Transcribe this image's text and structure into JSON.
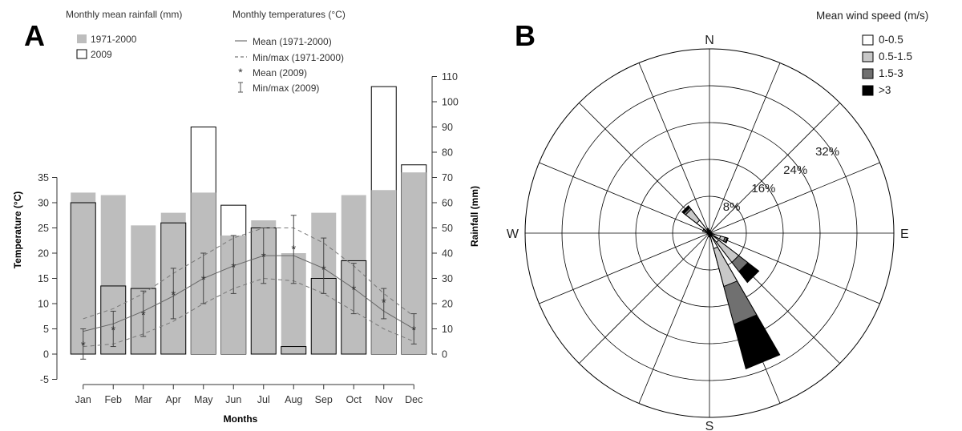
{
  "figure": {
    "panel_a_label": "A",
    "panel_b_label": "B"
  },
  "chart_data": [
    {
      "type": "bar",
      "panel": "A",
      "categories": [
        "Jan",
        "Feb",
        "Mar",
        "Apr",
        "May",
        "Jun",
        "Jul",
        "Aug",
        "Sep",
        "Oct",
        "Nov",
        "Dec"
      ],
      "xlabel": "Months",
      "ylabel_left": "Temperature (°C)",
      "ylabel_right": "Rainfall (mm)",
      "ylim_left": [
        -5,
        35
      ],
      "yticks_left": [
        -5,
        0,
        5,
        10,
        15,
        20,
        25,
        30,
        35
      ],
      "ylim_right": [
        0,
        110
      ],
      "yticks_right": [
        0,
        10,
        20,
        30,
        40,
        50,
        60,
        70,
        80,
        90,
        100,
        110
      ],
      "legend_rain_title": "Monthly mean rainfall (mm)",
      "legend_temp_title": "Monthly temperatures (°C)",
      "legend_rain": [
        {
          "label": "1971-2000",
          "color": "#bdbdbd"
        },
        {
          "label": "2009",
          "color": "#ffffff"
        }
      ],
      "legend_temp": [
        {
          "label": "Mean (1971-2000)",
          "style": "solid"
        },
        {
          "label": "Min/max (1971-2000)",
          "style": "dashed"
        },
        {
          "label": "Mean (2009)",
          "style": "asterisk"
        },
        {
          "label": "Min/max (2009)",
          "style": "errorbar"
        }
      ],
      "rainfall_1971_2000": [
        64,
        63,
        51,
        56,
        64,
        47,
        53,
        40,
        56,
        63,
        65,
        72
      ],
      "rainfall_2009": [
        60,
        27,
        26,
        52,
        90,
        59,
        50,
        3,
        30,
        37,
        106,
        75
      ],
      "temp_mean_1971_2000": [
        4.5,
        6,
        8.5,
        11.5,
        15,
        17.5,
        19.5,
        19.5,
        17,
        13,
        8.5,
        5
      ],
      "temp_min_1971_2000": [
        1.5,
        2,
        4,
        6.5,
        10,
        13,
        15,
        14.5,
        12,
        8.5,
        5,
        2.5
      ],
      "temp_max_1971_2000": [
        7,
        9,
        12,
        16,
        19.5,
        23,
        25,
        25,
        22,
        17.5,
        12,
        7.5
      ],
      "temp_mean_2009": [
        2,
        5,
        8,
        12,
        15,
        17.5,
        19.5,
        21,
        17,
        13,
        10.5,
        5
      ],
      "temp_min_2009": [
        -1,
        1.5,
        3.5,
        7,
        10,
        12,
        14,
        14,
        12,
        8,
        7,
        2
      ],
      "temp_max_2009": [
        5,
        8.5,
        12.5,
        17,
        20,
        23.5,
        25,
        27.5,
        23,
        18,
        13,
        8
      ]
    },
    {
      "type": "wind-rose",
      "panel": "B",
      "directions": [
        "N",
        "NNE",
        "NE",
        "ENE",
        "E",
        "ESE",
        "SE",
        "SSE",
        "S",
        "SSW",
        "SW",
        "WSW",
        "W",
        "WNW",
        "NW",
        "NNW"
      ],
      "compass_labels": [
        "N",
        "E",
        "S",
        "W"
      ],
      "ring_labels": [
        "8%",
        "16%",
        "24%",
        "32%"
      ],
      "ring_values": [
        8,
        16,
        24,
        32
      ],
      "rmax": 40,
      "legend_title": "Mean wind speed (m/s)",
      "legend_placement": "top-right",
      "speed_classes": [
        {
          "label": "0-0.5",
          "color": "#ffffff"
        },
        {
          "label": "0.5-1.5",
          "color": "#c8c8c8"
        },
        {
          "label": "1.5-3",
          "color": "#707070"
        },
        {
          "label": ">3",
          "color": "#000000"
        }
      ],
      "cumulative_frequency_percent": {
        "N": [
          0.6,
          0.6,
          0.6,
          0.6
        ],
        "NNE": [
          0.4,
          0.4,
          0.4,
          0.4
        ],
        "NE": [
          0.3,
          0.3,
          0.3,
          0.3
        ],
        "ENE": [
          0.3,
          0.3,
          0.3,
          0.3
        ],
        "E": [
          0.5,
          0.5,
          0.5,
          0.5
        ],
        "ESE": [
          2.5,
          3.5,
          4.0,
          4.2
        ],
        "SE": [
          2.5,
          8.0,
          10.5,
          13.5
        ],
        "SSE": [
          3.5,
          12.0,
          20.5,
          30.5
        ],
        "S": [
          0.8,
          0.8,
          0.8,
          0.8
        ],
        "SSW": [
          0.3,
          0.3,
          0.3,
          0.3
        ],
        "SW": [
          0.3,
          0.3,
          0.3,
          0.3
        ],
        "WSW": [
          0.3,
          0.3,
          0.3,
          0.3
        ],
        "W": [
          0.5,
          0.5,
          0.5,
          0.5
        ],
        "WNW": [
          1.0,
          1.5,
          1.5,
          1.5
        ],
        "NW": [
          3.5,
          6.5,
          7.0,
          7.5
        ],
        "NNW": [
          0.8,
          1.0,
          1.0,
          1.0
        ]
      }
    }
  ]
}
